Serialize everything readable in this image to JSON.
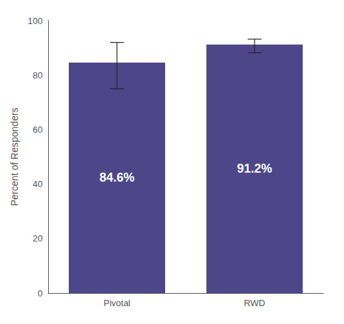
{
  "chart_data": {
    "type": "bar",
    "categories": [
      "Pivotal",
      "RWD"
    ],
    "values": [
      84.6,
      91.2
    ],
    "value_labels": [
      "84.6%",
      "91.2%"
    ],
    "data_labels": true,
    "errors_upper": [
      7.4,
      2.0
    ],
    "errors_lower": [
      9.6,
      3.0
    ],
    "color": "#4d4789",
    "ylabel": "Percent of Responders",
    "ylim": [
      0,
      100
    ],
    "yticks": [
      0,
      20,
      40,
      60,
      80,
      100
    ],
    "grid": false
  }
}
